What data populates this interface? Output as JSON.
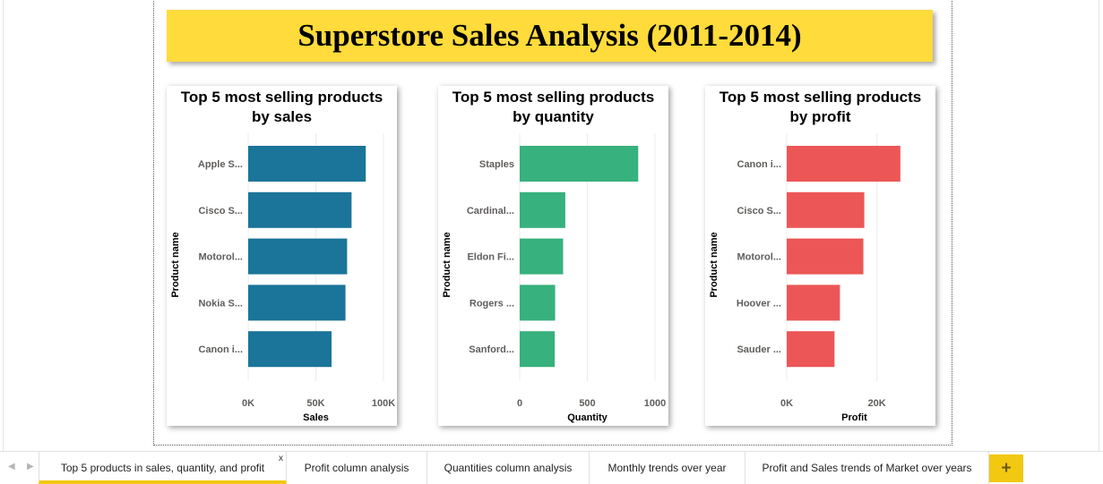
{
  "report": {
    "title": "Superstore Sales Analysis (2011-2014)"
  },
  "chart_data": [
    {
      "type": "bar",
      "orientation": "horizontal",
      "title": "Top 5 most selling products by sales",
      "xlabel": "Sales",
      "ylabel": "Product name",
      "categories": [
        "Apple S...",
        "Cisco S...",
        "Motorol...",
        "Nokia S...",
        "Canon i..."
      ],
      "values": [
        86900,
        76400,
        73100,
        71900,
        61600
      ],
      "xlim": [
        0,
        100000
      ],
      "ticks": [
        0,
        50000,
        100000
      ],
      "tick_labels": [
        "0K",
        "50K",
        "100K"
      ],
      "color": "#1b7499",
      "grid": true,
      "legend": "none"
    },
    {
      "type": "bar",
      "orientation": "horizontal",
      "title": "Top 5 most selling products by quantity",
      "xlabel": "Quantity",
      "ylabel": "Product name",
      "categories": [
        "Staples",
        "Cardinal...",
        "Eldon Fi...",
        "Rogers ...",
        "Sanford..."
      ],
      "values": [
        876,
        337,
        321,
        262,
        259
      ],
      "xlim": [
        0,
        1000
      ],
      "ticks": [
        0,
        500,
        1000
      ],
      "tick_labels": [
        "0",
        "500",
        "1000"
      ],
      "color": "#37b17d",
      "grid": true,
      "legend": "none"
    },
    {
      "type": "bar",
      "orientation": "horizontal",
      "title": "Top 5 most selling products by profit",
      "xlabel": "Profit",
      "ylabel": "Product name",
      "categories": [
        "Canon i...",
        "Cisco S...",
        "Motorol...",
        "Hoover ...",
        "Sauder ..."
      ],
      "values": [
        25200,
        17200,
        17000,
        11800,
        10600
      ],
      "xlim": [
        0,
        30000
      ],
      "ticks": [
        0,
        20000
      ],
      "tick_labels": [
        "0K",
        "20K"
      ],
      "color": "#ec5656",
      "grid": true,
      "legend": "none"
    }
  ],
  "tabs": [
    {
      "label": "Top 5 products in sales, quantity, and profit",
      "active": true,
      "close": "x"
    },
    {
      "label": "Profit column analysis"
    },
    {
      "label": "Quantities column analysis"
    },
    {
      "label": "Monthly trends over year"
    },
    {
      "label": "Profit and Sales trends of Market over years"
    }
  ],
  "nav": {
    "prev_icon": "chevron-left-icon",
    "next_icon": "chevron-right-icon",
    "prev": "◀",
    "next": "▶"
  },
  "add_page": {
    "icon": "plus-icon",
    "label": "+"
  }
}
